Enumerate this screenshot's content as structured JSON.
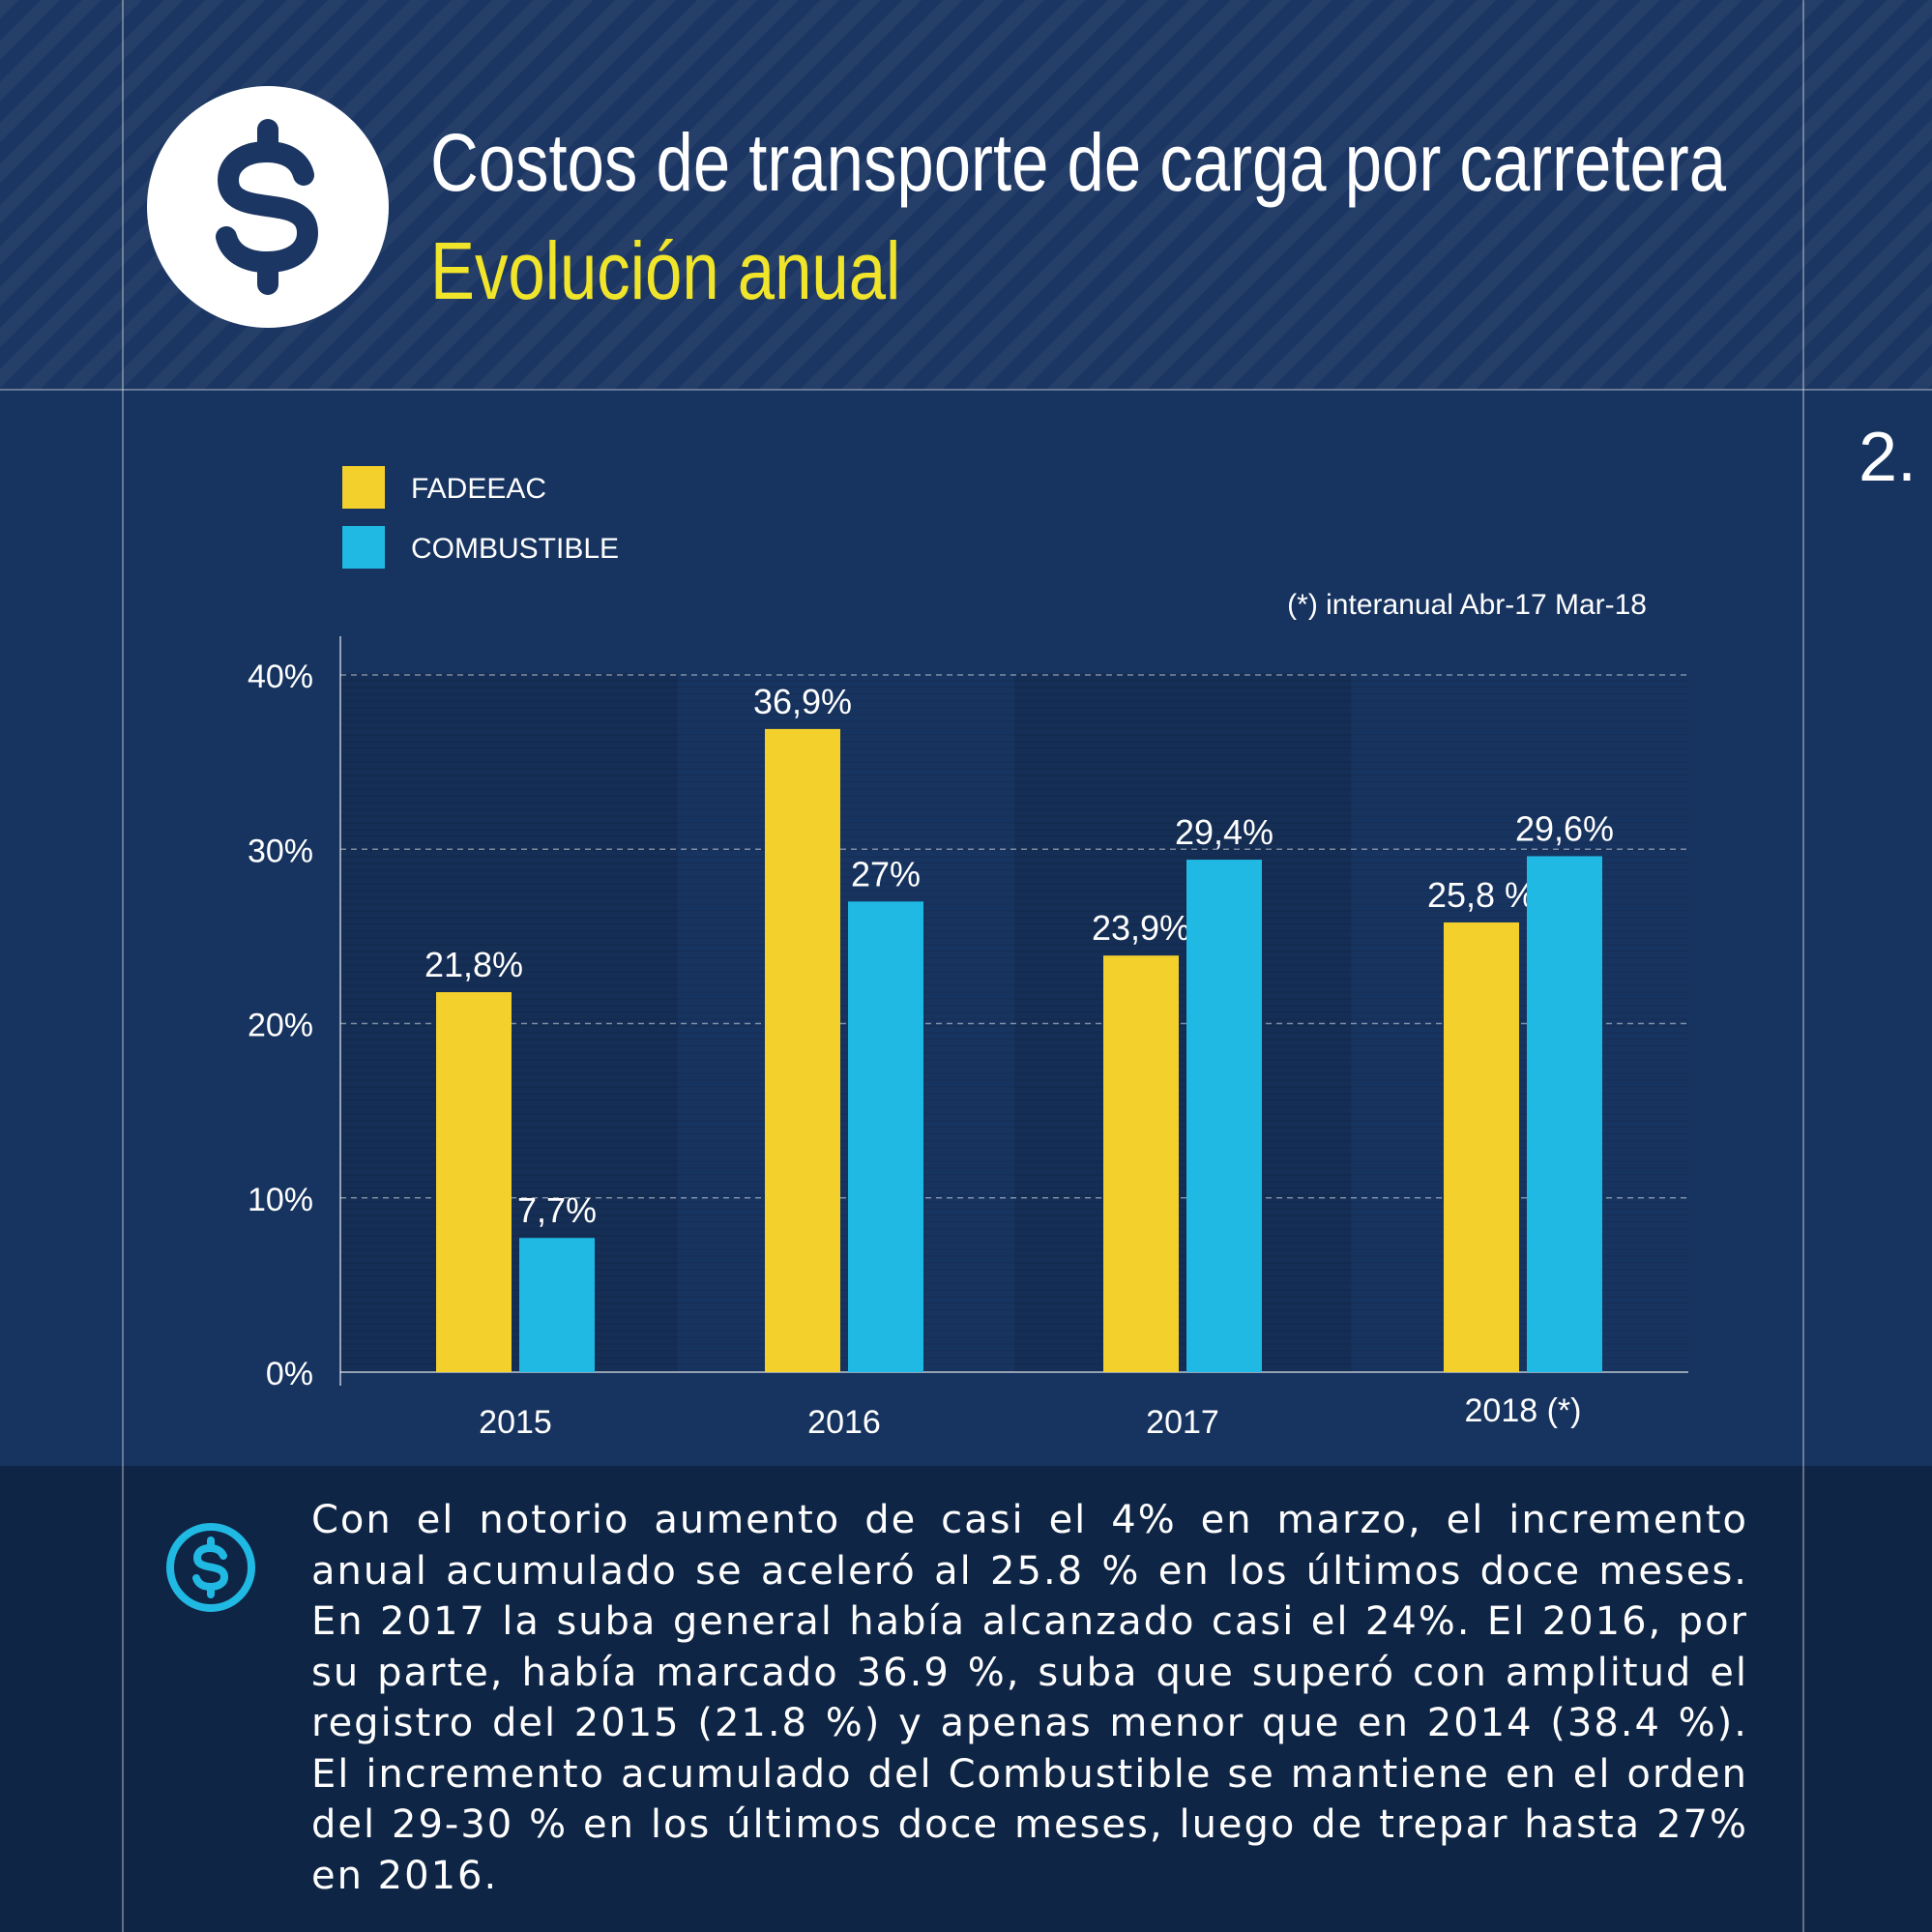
{
  "header": {
    "title": "Costos de transporte de carga por carretera",
    "subtitle": "Evolución anual",
    "page_number": "2.",
    "logo_icon": "dollar-icon"
  },
  "colors": {
    "background": "#173460",
    "header_bg": "#1b3662",
    "footer_bg": "#0f2545",
    "fadeeac": "#f4d02c",
    "combustible": "#1fb9e3",
    "subtitle": "#f0e52a"
  },
  "chart_data": {
    "type": "bar",
    "categories": [
      "2015",
      "2016",
      "2017",
      "2018 (*)"
    ],
    "series": [
      {
        "name": "FADEEAC",
        "values": [
          21.8,
          36.9,
          23.9,
          25.8
        ],
        "labels": [
          "21,8%",
          "36,9%",
          "23,9%",
          "25,8 %"
        ]
      },
      {
        "name": "COMBUSTIBLE",
        "values": [
          7.7,
          27,
          29.4,
          29.6
        ],
        "labels": [
          "7,7%",
          "27%",
          "29,4%",
          "29,6%"
        ]
      }
    ],
    "ylim": [
      0,
      40
    ],
    "yticks": [
      "0%",
      "10%",
      "20%",
      "30%",
      "40%"
    ],
    "grid": true,
    "legend": "top-left",
    "note": "(*) interanual Abr-17 Mar-18"
  },
  "footer": {
    "icon": "dollar-circle-icon",
    "text": "Con el notorio aumento de casi el 4% en marzo, el incremento anual acumulado se aceleró al 25.8 % en los últimos doce meses. En 2017 la suba general había alcanzado casi el 24%. El 2016, por su parte, había marcado 36.9 %, suba que superó con amplitud el registro del 2015 (21.8 %) y apenas menor que en 2014 (38.4 %). El incremento acumu­lado del Combustible se mantiene en el orden del 29-30 % en los últi­mos doce meses, luego de trepar hasta 27% en 2016."
  }
}
